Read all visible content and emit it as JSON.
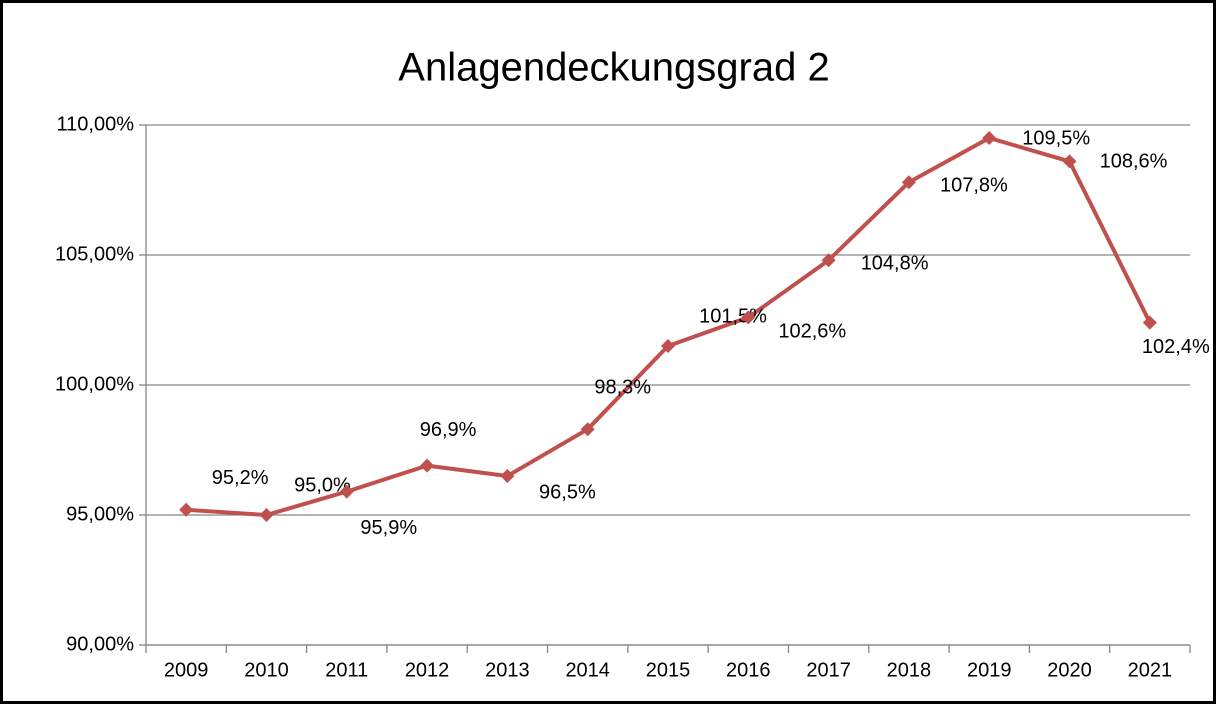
{
  "chart_data": {
    "type": "line",
    "title": "Anlagendeckungsgrad 2",
    "categories": [
      "2009",
      "2010",
      "2011",
      "2012",
      "2013",
      "2014",
      "2015",
      "2016",
      "2017",
      "2018",
      "2019",
      "2020",
      "2021"
    ],
    "series": [
      {
        "color": "#c0504d",
        "values": [
          95.2,
          95.0,
          95.9,
          96.9,
          96.5,
          98.3,
          101.5,
          102.6,
          104.8,
          107.8,
          109.5,
          108.6,
          102.4
        ],
        "value_labels": [
          "95,2%",
          "95,0%",
          "95,9%",
          "96,9%",
          "96,5%",
          "98,3%",
          "101,5%",
          "102,6%",
          "104,8%",
          "107,8%",
          "109,5%",
          "108,6%",
          "102,4%"
        ]
      }
    ],
    "ylim": [
      90,
      110
    ],
    "yticks": [
      {
        "value": 90,
        "label": "90,00%"
      },
      {
        "value": 95,
        "label": "95,00%"
      },
      {
        "value": 100,
        "label": "100,00%"
      },
      {
        "value": 105,
        "label": "105,00%"
      },
      {
        "value": 110,
        "label": "110,00%"
      }
    ],
    "grid": true
  }
}
